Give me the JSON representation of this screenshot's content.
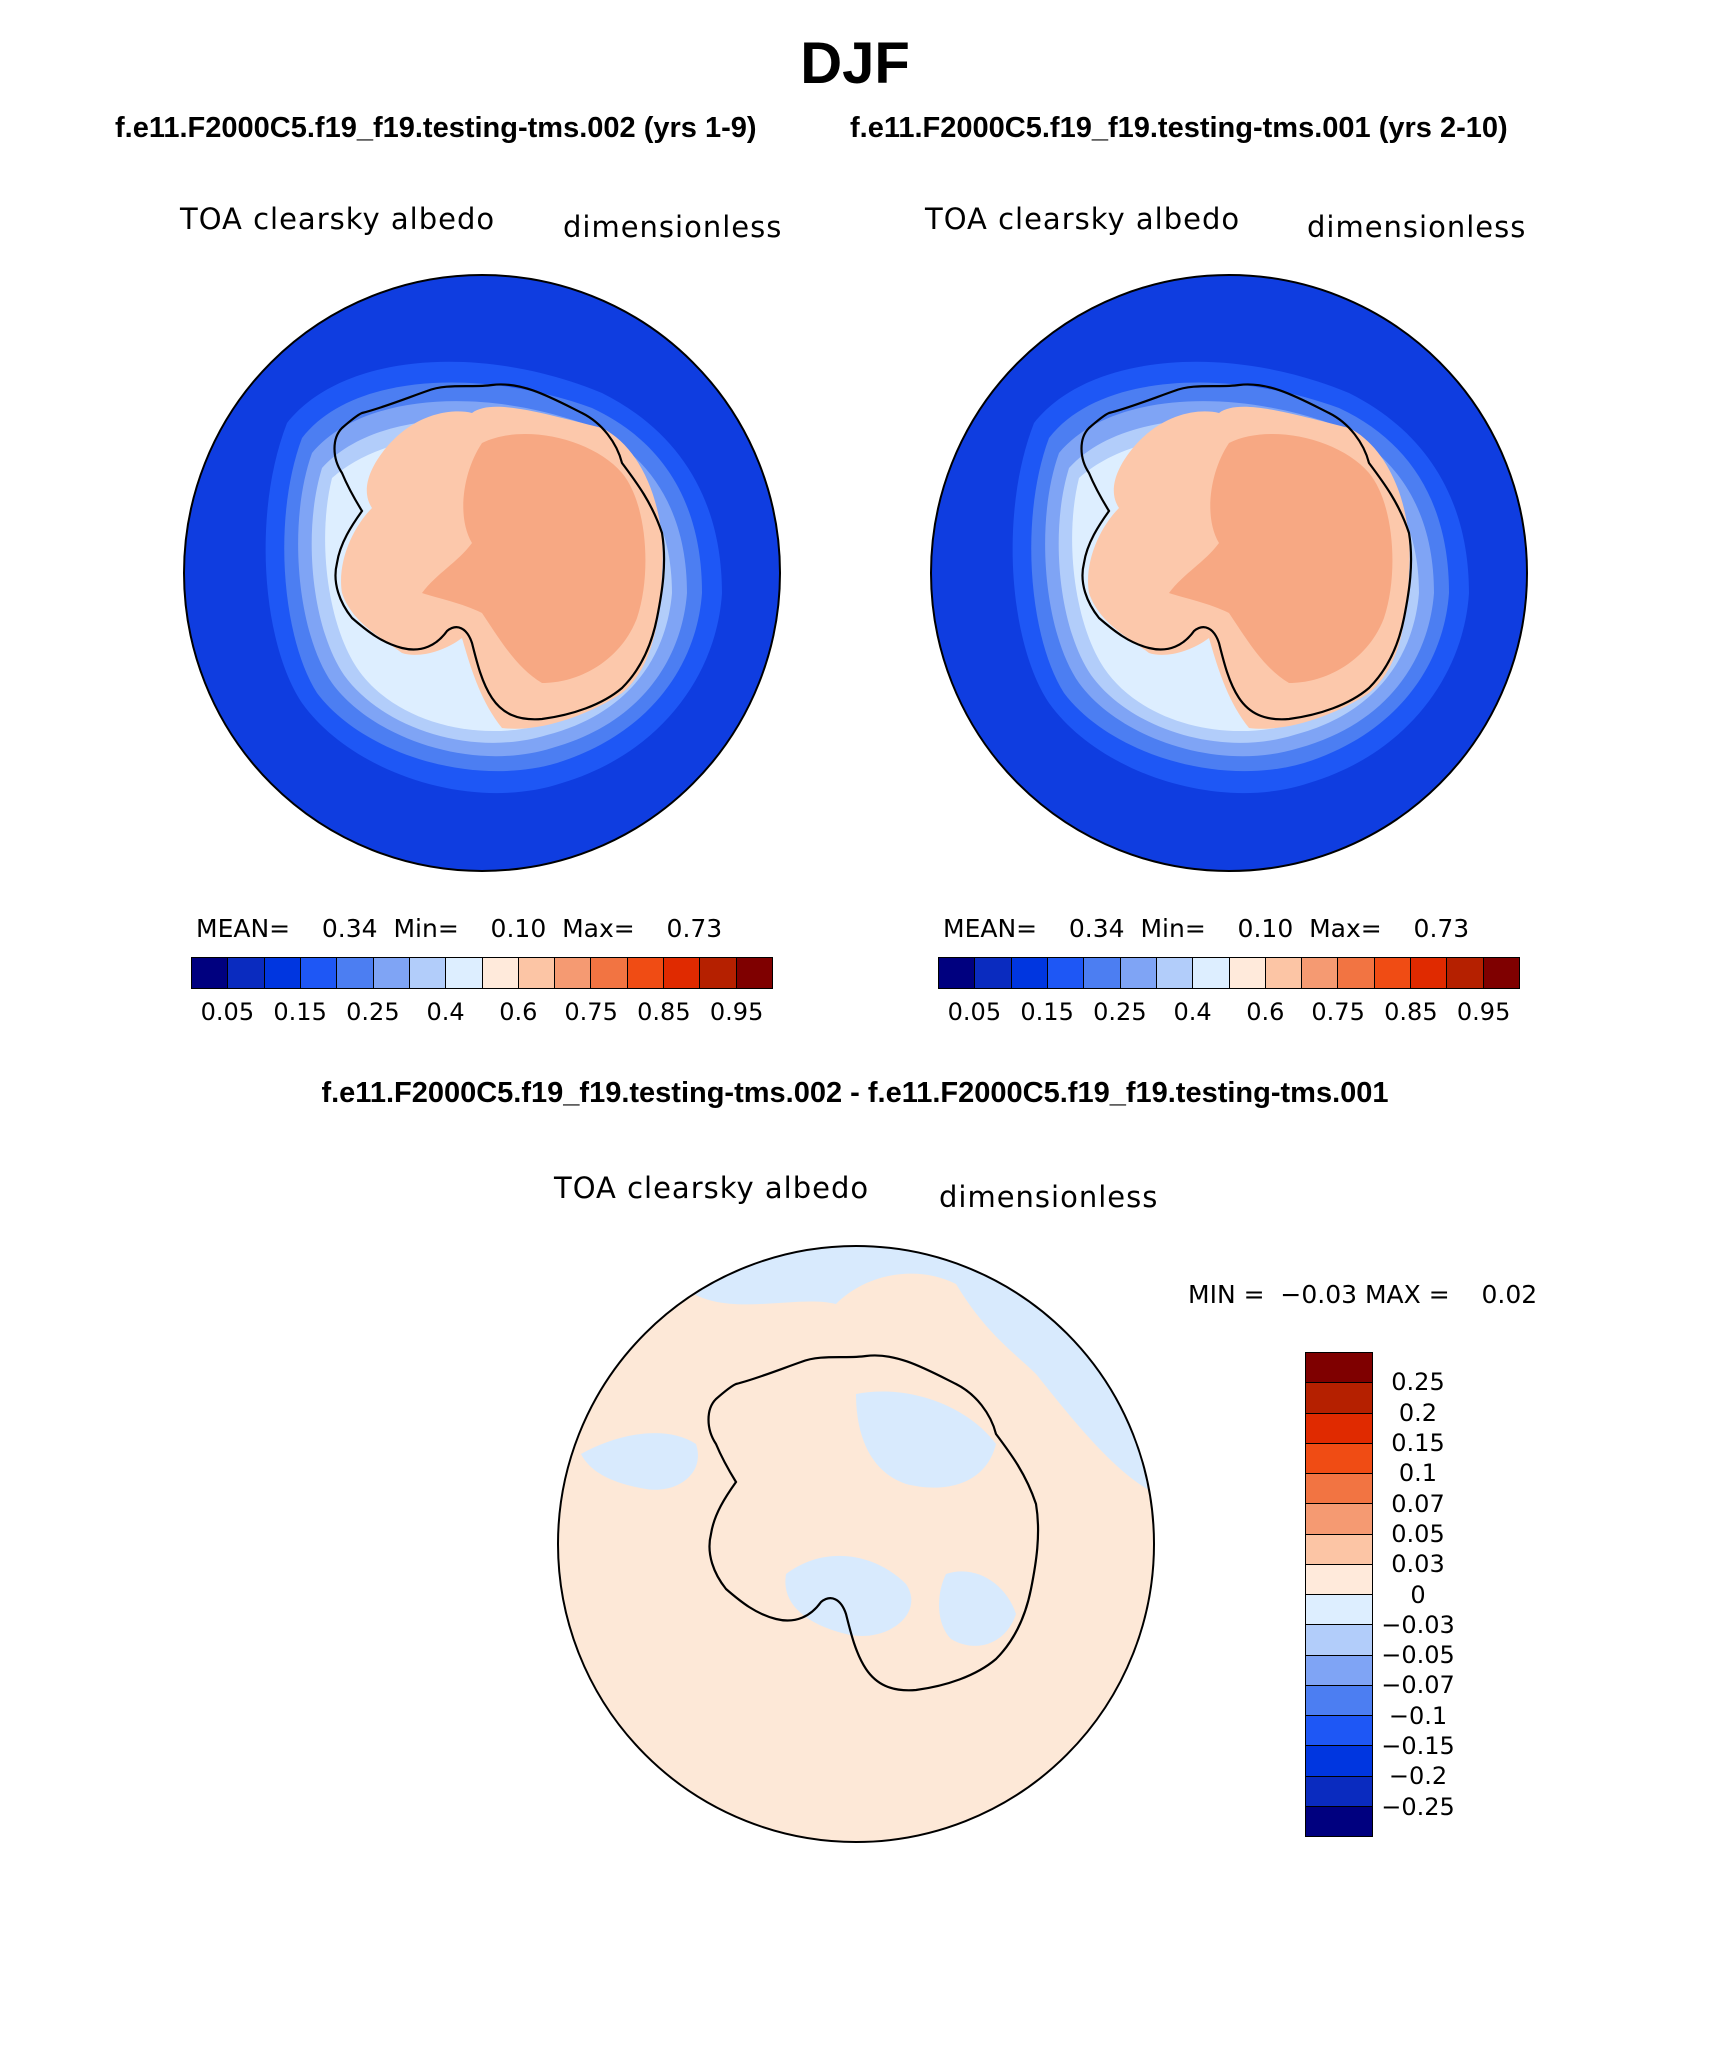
{
  "header": {
    "title": "DJF",
    "subtitle_left": "f.e11.F2000C5.f19_f19.testing-tms.002 (yrs 1-9)",
    "subtitle_right": "f.e11.F2000C5.f19_f19.testing-tms.001 (yrs 2-10)",
    "diff_title": "f.e11.F2000C5.f19_f19.testing-tms.002 - f.e11.F2000C5.f19_f19.testing-tms.001"
  },
  "panels": [
    {
      "variable": "TOA clearsky albedo",
      "units": "dimensionless",
      "stats": "MEAN=    0.34  Min=    0.10  Max=    0.73"
    },
    {
      "variable": "TOA clearsky albedo",
      "units": "dimensionless",
      "stats": "MEAN=    0.34  Min=    0.10  Max=    0.73"
    }
  ],
  "diff_panel": {
    "variable": "TOA clearsky albedo",
    "units": "dimensionless",
    "stats": "MIN =  −0.03 MAX =    0.02"
  },
  "colorbar": {
    "colors": [
      "#00007f",
      "#0a2bbf",
      "#0036e0",
      "#1e57f5",
      "#4c7ef2",
      "#7fa4f5",
      "#b2cdfa",
      "#ddeeff",
      "#ffeadb",
      "#fcc5a5",
      "#f59a72",
      "#f27442",
      "#f04c14",
      "#e02a00",
      "#b52000",
      "#7f0000"
    ],
    "labels": [
      "0.05",
      "0.15",
      "0.25",
      "0.4",
      "0.6",
      "0.75",
      "0.85",
      "0.95"
    ]
  },
  "diff_colorbar": {
    "colors": [
      "#7f0000",
      "#b52000",
      "#e02a00",
      "#f04c14",
      "#f27442",
      "#f59a72",
      "#fcc5a5",
      "#ffeadb",
      "#ddeeff",
      "#b2cdfa",
      "#7fa4f5",
      "#4c7ef2",
      "#1e57f5",
      "#0036e0",
      "#0a2bbf",
      "#00007f"
    ],
    "labels": [
      "0.25",
      "0.2",
      "0.15",
      "0.1",
      "0.07",
      "0.05",
      "0.03",
      "0",
      "−0.03",
      "−0.05",
      "−0.07",
      "−0.1",
      "−0.15",
      "−0.2",
      "−0.25"
    ]
  },
  "map_colors": {
    "ocean": "#0f3de0",
    "ice_high": "#f7a883",
    "ice_low": "#fcc8ab",
    "diff_pos": "#fde8d7",
    "diff_neg": "#d8eafd"
  }
}
